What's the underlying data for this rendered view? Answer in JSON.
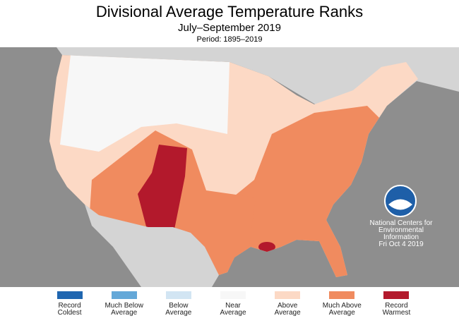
{
  "header": {
    "title": "Divisional Average Temperature Ranks",
    "subtitle": "July–September 2019",
    "period": "Period: 1895–2019"
  },
  "legend": [
    {
      "label": "Record Coldest",
      "color": "#1f66b0"
    },
    {
      "label": "Much Below Average",
      "color": "#64a8d8"
    },
    {
      "label": "Below Average",
      "color": "#d2e5f3"
    },
    {
      "label": "Near Average",
      "color": "#f7f7f7"
    },
    {
      "label": "Above Average",
      "color": "#fcd9c5"
    },
    {
      "label": "Much Above Average",
      "color": "#f08b5f"
    },
    {
      "label": "Record Warmest",
      "color": "#b3192c"
    }
  ],
  "credit": {
    "lines": [
      "National Centers for",
      "Environmental",
      "Information"
    ],
    "date": "Fri Oct  4 2019"
  }
}
